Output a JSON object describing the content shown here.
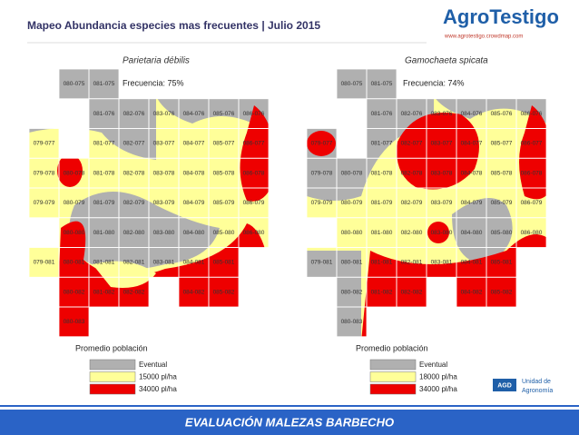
{
  "header": {
    "title": "Mapeo Abundancia especies mas frecuentes | Julio 2015",
    "logo": "AgroTestigo",
    "logo_url": "www.agrotestigo.crowdmap.com"
  },
  "maps": [
    {
      "species": "Parietaria débilis",
      "frequency": "Frecuencia: 75%",
      "grid": [
        [
          null,
          "080-075",
          "081-075",
          null,
          null,
          null,
          null,
          null
        ],
        [
          null,
          null,
          "081-076",
          "082-076",
          "083-076",
          "084-076",
          "085-076",
          "086-076"
        ],
        [
          "079-077",
          null,
          "081-077",
          "082-077",
          "083-077",
          "084-077",
          "085-077",
          "086-077"
        ],
        [
          "079-078",
          "080-078",
          "081-078",
          "082-078",
          "083-078",
          "084-078",
          "085-078",
          "086-078"
        ],
        [
          "079-079",
          "080-079",
          "081-079",
          "082-079",
          "083-079",
          "084-079",
          "085-079",
          "086-079"
        ],
        [
          null,
          "080-080",
          "081-080",
          "082-080",
          "083-080",
          "084-080",
          "085-080",
          "086-080"
        ],
        [
          "079-081",
          "080-081",
          "081-081",
          "082-081",
          "083-081",
          "084-081",
          "085-081",
          null
        ],
        [
          null,
          "080-082",
          "081-082",
          "082-082",
          null,
          "084-082",
          "085-082",
          null
        ],
        [
          null,
          "080-083",
          null,
          null,
          null,
          null,
          null,
          null
        ]
      ],
      "legend": {
        "title": "Promedio población",
        "items": [
          "Eventual",
          "15000 pl/ha",
          "34000 pl/ha"
        ]
      }
    },
    {
      "species": "Gamochaeta spicata",
      "frequency": "Frecuencia: 74%",
      "grid": [
        [
          null,
          "080-075",
          "081-075",
          null,
          null,
          null,
          null,
          null
        ],
        [
          null,
          null,
          "081-076",
          "082-076",
          "083-076",
          "084-076",
          "085-076",
          "086-076"
        ],
        [
          "079-077",
          null,
          "081-077",
          "082-077",
          "083-077",
          "084-077",
          "085-077",
          "086-077"
        ],
        [
          "079-078",
          "080-078",
          "081-078",
          "082-078",
          "083-078",
          "084-078",
          "085-078",
          "086-078"
        ],
        [
          "079-079",
          "080-079",
          "081-079",
          "082-079",
          "083-079",
          "084-079",
          "085-079",
          "086-079"
        ],
        [
          null,
          "080-080",
          "081-080",
          "082-080",
          "083-080",
          "084-080",
          "085-080",
          "086-080"
        ],
        [
          "079-081",
          "080-081",
          "081-081",
          "082-081",
          "083-081",
          "084-081",
          "085-081",
          null
        ],
        [
          null,
          "080-082",
          "081-082",
          "082-082",
          null,
          "084-082",
          "085-082",
          null
        ],
        [
          null,
          "080-083",
          null,
          null,
          null,
          null,
          null,
          null
        ]
      ],
      "legend": {
        "title": "Promedio población",
        "items": [
          "Eventual",
          "18000 pl/ha",
          "34000 pl/ha"
        ]
      }
    }
  ],
  "footer": {
    "banner": "EVALUACIÓN MALEZAS BARBECHO",
    "agd": "AGD",
    "unit_line1": "Unidad de",
    "unit_line2": "Agronomía"
  }
}
